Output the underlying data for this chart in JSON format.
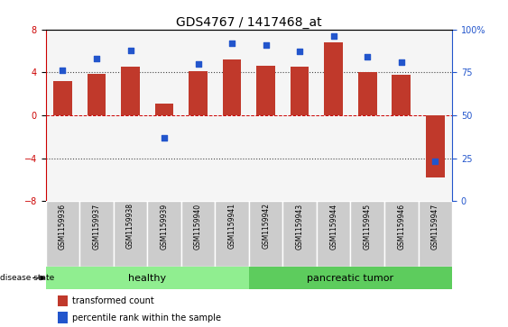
{
  "title": "GDS4767 / 1417468_at",
  "samples": [
    "GSM1159936",
    "GSM1159937",
    "GSM1159938",
    "GSM1159939",
    "GSM1159940",
    "GSM1159941",
    "GSM1159942",
    "GSM1159943",
    "GSM1159944",
    "GSM1159945",
    "GSM1159946",
    "GSM1159947"
  ],
  "transformed_count": [
    3.2,
    3.85,
    4.5,
    1.1,
    4.1,
    5.2,
    4.65,
    4.5,
    6.8,
    4.05,
    3.75,
    -5.8
  ],
  "percentile_rank": [
    76,
    83,
    88,
    37,
    80,
    92,
    91,
    87,
    96,
    84,
    81,
    23
  ],
  "bar_color": "#c0392b",
  "dot_color": "#2255cc",
  "bar_width": 0.55,
  "ylim_left": [
    -8,
    8
  ],
  "ylim_right": [
    0,
    100
  ],
  "yticks_left": [
    -8,
    -4,
    0,
    4,
    8
  ],
  "yticks_right": [
    0,
    25,
    50,
    75,
    100
  ],
  "ytick_labels_right": [
    "0",
    "25",
    "50",
    "75",
    "100%"
  ],
  "healthy_color": "#90ee90",
  "tumor_color": "#5dcc5d",
  "label_row_color": "#cccccc",
  "hline_color": "#cc0000",
  "dotted_color": "#444444",
  "legend_bar_label": "transformed count",
  "legend_dot_label": "percentile rank within the sample",
  "disease_state_label": "disease state",
  "background_color": "#ffffff",
  "n_healthy": 6,
  "n_tumor": 6
}
